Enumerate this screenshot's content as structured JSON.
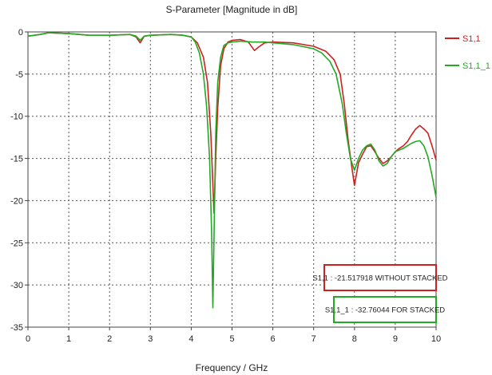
{
  "chart_data": {
    "type": "line",
    "title": "S-Parameter [Magnitude in dB]",
    "xlabel": "Frequency / GHz",
    "ylabel": "",
    "xlim": [
      0,
      10
    ],
    "ylim": [
      -35,
      0
    ],
    "xticks": [
      "0",
      "1",
      "2",
      "3",
      "4",
      "5",
      "6",
      "7",
      "8",
      "9",
      "10"
    ],
    "yticks": [
      "0",
      "-5",
      "-10",
      "-15",
      "-20",
      "-25",
      "-30",
      "-35"
    ],
    "grid": true,
    "legend_position": "top-right",
    "series": [
      {
        "name": "S1,1",
        "color": "#cc2222",
        "points": [
          [
            0,
            -0.5
          ],
          [
            0.3,
            -0.3
          ],
          [
            0.5,
            -0.1
          ],
          [
            1.0,
            -0.2
          ],
          [
            1.5,
            -0.4
          ],
          [
            2.0,
            -0.4
          ],
          [
            2.5,
            -0.3
          ],
          [
            2.65,
            -0.6
          ],
          [
            2.75,
            -1.3
          ],
          [
            2.85,
            -0.5
          ],
          [
            3.0,
            -0.4
          ],
          [
            3.5,
            -0.3
          ],
          [
            3.8,
            -0.4
          ],
          [
            4.0,
            -0.6
          ],
          [
            4.15,
            -1.3
          ],
          [
            4.3,
            -3.0
          ],
          [
            4.4,
            -6.0
          ],
          [
            4.48,
            -12.0
          ],
          [
            4.53,
            -18.0
          ],
          [
            4.56,
            -21.5
          ],
          [
            4.6,
            -15.0
          ],
          [
            4.65,
            -9.0
          ],
          [
            4.72,
            -4.0
          ],
          [
            4.8,
            -2.0
          ],
          [
            4.9,
            -1.2
          ],
          [
            5.0,
            -1.0
          ],
          [
            5.2,
            -0.9
          ],
          [
            5.4,
            -1.2
          ],
          [
            5.55,
            -2.2
          ],
          [
            5.65,
            -1.8
          ],
          [
            5.8,
            -1.3
          ],
          [
            6.0,
            -1.2
          ],
          [
            6.5,
            -1.3
          ],
          [
            7.0,
            -1.7
          ],
          [
            7.3,
            -2.3
          ],
          [
            7.5,
            -3.3
          ],
          [
            7.65,
            -5.0
          ],
          [
            7.75,
            -8.5
          ],
          [
            7.85,
            -13.0
          ],
          [
            7.95,
            -16.5
          ],
          [
            8.0,
            -18.2
          ],
          [
            8.1,
            -15.5
          ],
          [
            8.2,
            -14.5
          ],
          [
            8.3,
            -13.6
          ],
          [
            8.4,
            -13.5
          ],
          [
            8.5,
            -14.2
          ],
          [
            8.6,
            -15.0
          ],
          [
            8.7,
            -15.6
          ],
          [
            8.8,
            -15.3
          ],
          [
            8.9,
            -14.8
          ],
          [
            9.0,
            -14.2
          ],
          [
            9.1,
            -13.8
          ],
          [
            9.2,
            -13.5
          ],
          [
            9.3,
            -13.0
          ],
          [
            9.4,
            -12.2
          ],
          [
            9.5,
            -11.5
          ],
          [
            9.6,
            -11.1
          ],
          [
            9.7,
            -11.5
          ],
          [
            9.8,
            -12.0
          ],
          [
            9.9,
            -13.5
          ],
          [
            10.0,
            -15.2
          ]
        ]
      },
      {
        "name": "S1,1_1",
        "color": "#22aa22",
        "points": [
          [
            0,
            -0.5
          ],
          [
            0.3,
            -0.3
          ],
          [
            0.5,
            -0.1
          ],
          [
            1.0,
            -0.2
          ],
          [
            1.5,
            -0.4
          ],
          [
            2.0,
            -0.4
          ],
          [
            2.5,
            -0.3
          ],
          [
            2.65,
            -0.5
          ],
          [
            2.75,
            -1.0
          ],
          [
            2.85,
            -0.5
          ],
          [
            3.0,
            -0.4
          ],
          [
            3.5,
            -0.3
          ],
          [
            3.8,
            -0.4
          ],
          [
            4.0,
            -0.6
          ],
          [
            4.1,
            -1.2
          ],
          [
            4.2,
            -2.5
          ],
          [
            4.3,
            -5.0
          ],
          [
            4.38,
            -9.0
          ],
          [
            4.45,
            -15.0
          ],
          [
            4.5,
            -24.0
          ],
          [
            4.53,
            -32.7
          ],
          [
            4.56,
            -24.0
          ],
          [
            4.6,
            -12.0
          ],
          [
            4.65,
            -6.0
          ],
          [
            4.72,
            -3.0
          ],
          [
            4.8,
            -1.6
          ],
          [
            4.9,
            -1.3
          ],
          [
            5.0,
            -1.2
          ],
          [
            5.2,
            -1.1
          ],
          [
            5.5,
            -1.2
          ],
          [
            5.8,
            -1.2
          ],
          [
            6.0,
            -1.3
          ],
          [
            6.5,
            -1.5
          ],
          [
            7.0,
            -2.0
          ],
          [
            7.2,
            -2.5
          ],
          [
            7.4,
            -3.5
          ],
          [
            7.55,
            -5.0
          ],
          [
            7.7,
            -8.5
          ],
          [
            7.8,
            -12.0
          ],
          [
            7.9,
            -15.0
          ],
          [
            8.0,
            -16.4
          ],
          [
            8.1,
            -15.0
          ],
          [
            8.2,
            -14.0
          ],
          [
            8.3,
            -13.5
          ],
          [
            8.4,
            -13.3
          ],
          [
            8.5,
            -14.0
          ],
          [
            8.6,
            -15.3
          ],
          [
            8.7,
            -15.9
          ],
          [
            8.8,
            -15.6
          ],
          [
            8.9,
            -14.8
          ],
          [
            9.0,
            -14.2
          ],
          [
            9.1,
            -14.0
          ],
          [
            9.2,
            -13.8
          ],
          [
            9.3,
            -13.5
          ],
          [
            9.4,
            -13.2
          ],
          [
            9.5,
            -13.0
          ],
          [
            9.6,
            -12.9
          ],
          [
            9.7,
            -13.5
          ],
          [
            9.8,
            -14.8
          ],
          [
            9.9,
            -17.0
          ],
          [
            10.0,
            -19.6
          ]
        ]
      }
    ],
    "annotations": [
      {
        "text": "S1,1 : -21.517918 WITHOUT STACKED",
        "color": "#cc2222"
      },
      {
        "text": "S1,1_1 : -32.76044 FOR STACKED",
        "color": "#22aa22"
      }
    ]
  }
}
